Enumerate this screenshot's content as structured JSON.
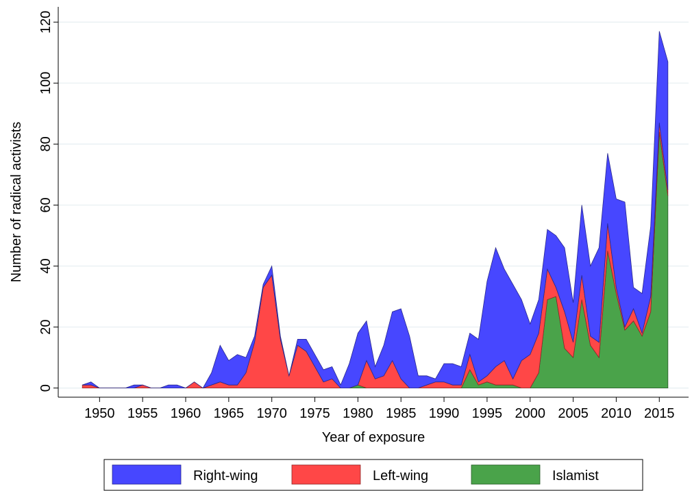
{
  "chart_data": {
    "type": "stacked_area",
    "x_label": "Year of exposure",
    "y_label": "Number of radical activists",
    "x": [
      1948,
      1949,
      1950,
      1951,
      1952,
      1953,
      1954,
      1955,
      1956,
      1957,
      1958,
      1959,
      1960,
      1961,
      1962,
      1963,
      1964,
      1965,
      1966,
      1967,
      1968,
      1969,
      1970,
      1971,
      1972,
      1973,
      1974,
      1975,
      1976,
      1977,
      1978,
      1979,
      1980,
      1981,
      1982,
      1983,
      1984,
      1985,
      1986,
      1987,
      1988,
      1989,
      1990,
      1991,
      1992,
      1993,
      1994,
      1995,
      1996,
      1997,
      1998,
      1999,
      2000,
      2001,
      2002,
      2003,
      2004,
      2005,
      2006,
      2007,
      2008,
      2009,
      2010,
      2011,
      2012,
      2013,
      2014,
      2015,
      2016
    ],
    "series": [
      {
        "name": "Right-wing",
        "color": "#4747ff",
        "values": [
          0,
          1,
          0,
          0,
          0,
          0,
          1,
          0,
          0,
          0,
          1,
          1,
          0,
          0,
          0,
          4,
          12,
          8,
          10,
          5,
          2,
          1,
          3,
          1,
          0,
          2,
          4,
          4,
          4,
          4,
          1,
          8,
          17,
          13,
          4,
          10,
          16,
          23,
          17,
          4,
          3,
          1,
          6,
          7,
          6,
          7,
          14,
          31,
          39,
          30,
          31,
          20,
          10,
          11,
          13,
          17,
          21,
          13,
          23,
          23,
          31,
          23,
          29,
          41,
          7,
          13,
          23,
          30,
          42
        ]
      },
      {
        "name": "Left-wing",
        "color": "#ff4747",
        "values": [
          1,
          1,
          0,
          0,
          0,
          0,
          0,
          1,
          0,
          0,
          0,
          0,
          0,
          2,
          0,
          1,
          2,
          1,
          1,
          5,
          15,
          33,
          37,
          16,
          4,
          14,
          12,
          7,
          2,
          3,
          0,
          0,
          0,
          9,
          3,
          4,
          9,
          3,
          0,
          0,
          1,
          2,
          2,
          1,
          1,
          5,
          1,
          2,
          6,
          8,
          2,
          9,
          11,
          13,
          10,
          3,
          12,
          5,
          8,
          3,
          5,
          9,
          2,
          1,
          4,
          1,
          5,
          3,
          2
        ]
      },
      {
        "name": "Islamist",
        "color": "#4aa34a",
        "values": [
          0,
          0,
          0,
          0,
          0,
          0,
          0,
          0,
          0,
          0,
          0,
          0,
          0,
          0,
          0,
          0,
          0,
          0,
          0,
          0,
          0,
          0,
          0,
          0,
          0,
          0,
          0,
          0,
          0,
          0,
          0,
          0,
          1,
          0,
          0,
          0,
          0,
          0,
          0,
          0,
          0,
          0,
          0,
          0,
          0,
          6,
          1,
          2,
          1,
          1,
          1,
          0,
          0,
          5,
          29,
          30,
          13,
          10,
          29,
          14,
          10,
          45,
          31,
          19,
          22,
          17,
          25,
          84,
          63
        ]
      }
    ],
    "xlim": [
      1945.2,
      2018.4
    ],
    "xticks": [
      1950,
      1955,
      1960,
      1965,
      1970,
      1975,
      1980,
      1985,
      1990,
      1995,
      2000,
      2005,
      2010,
      2015
    ],
    "ylim": [
      -3,
      125
    ],
    "yticks": [
      0,
      20,
      40,
      60,
      80,
      100,
      120
    ],
    "grid": true,
    "legend": "bottom"
  }
}
